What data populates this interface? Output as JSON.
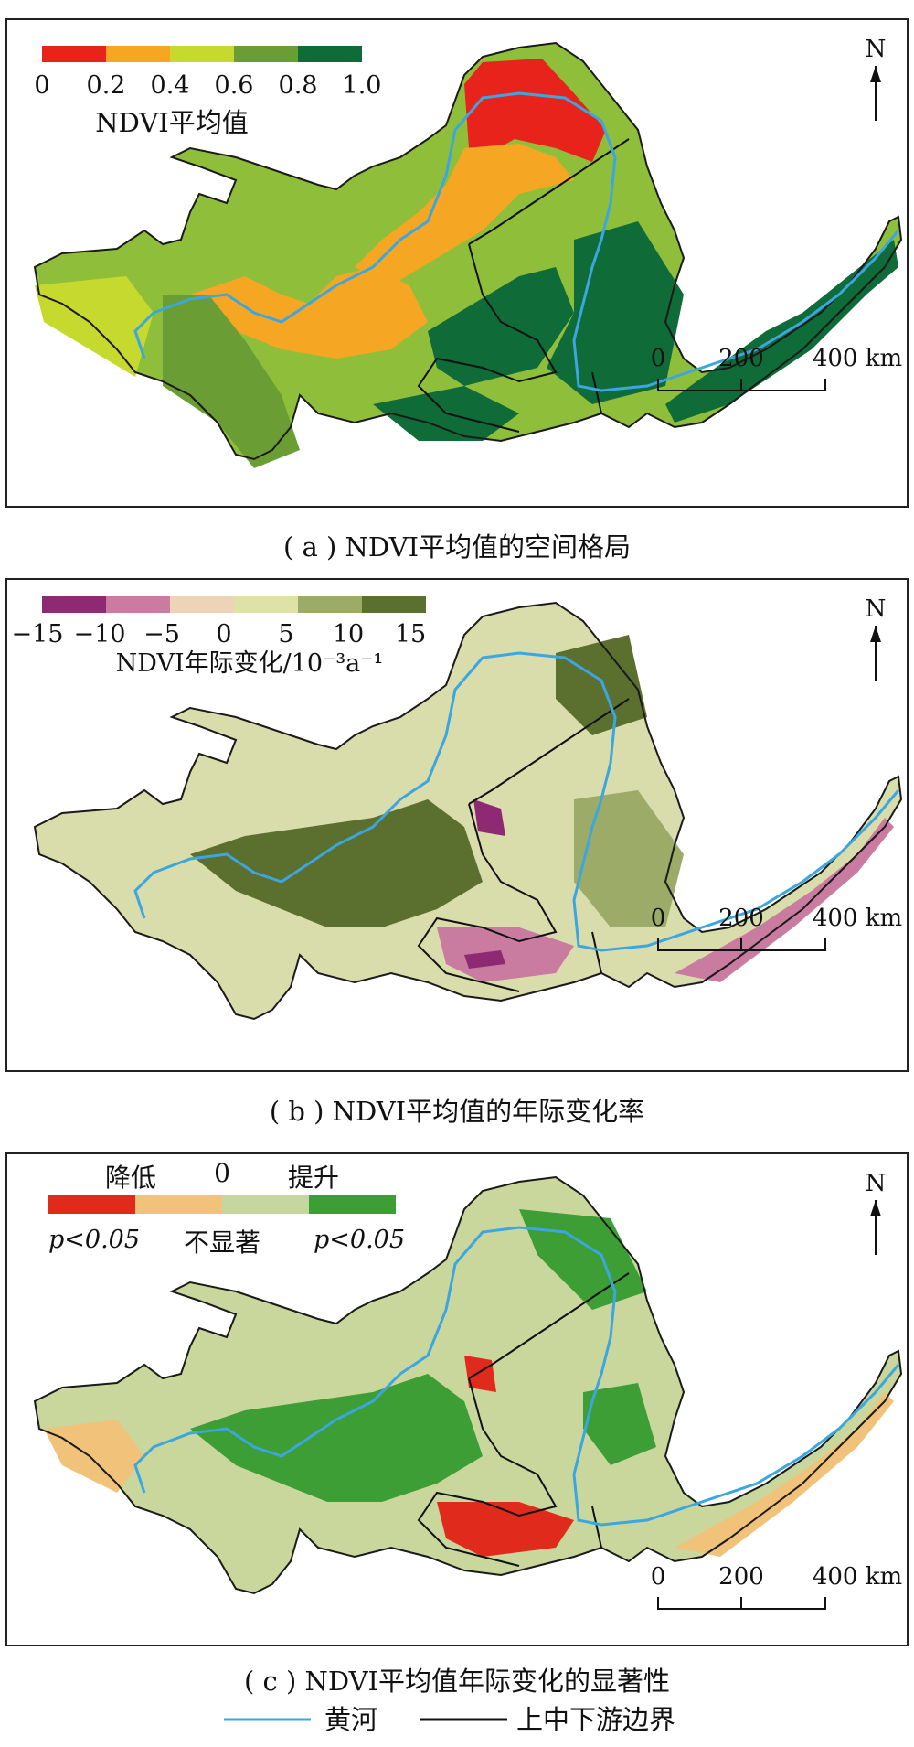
{
  "panels": [
    {
      "id": "a",
      "caption": "( a ) NDVI平均值的空间格局",
      "legend": {
        "title": "NDVI平均值",
        "ticks": [
          "0",
          "0.2",
          "0.4",
          "0.6",
          "0.8",
          "1.0"
        ],
        "colors": [
          "#e8231c",
          "#f5a623",
          "#c5d92e",
          "#6a9e34",
          "#0f6b38"
        ]
      },
      "map_base_color": "#8fbf3a",
      "north": "N",
      "scale_bar": [
        "0",
        "200",
        "400 km"
      ]
    },
    {
      "id": "b",
      "caption": "( b ) NDVI平均值的年际变化率",
      "legend": {
        "title": "NDVI年际变化/10⁻³a⁻¹",
        "ticks": [
          "−15",
          "−10",
          "−5",
          "0",
          "5",
          "10",
          "15"
        ],
        "colors": [
          "#8e2a74",
          "#c97ba0",
          "#edd4b6",
          "#dfe2a6",
          "#9cab68",
          "#5b6f2e"
        ]
      },
      "map_base_color": "#d9dcab",
      "north": "N",
      "scale_bar": [
        "0",
        "200",
        "400 km"
      ]
    },
    {
      "id": "c",
      "caption": "( c ) NDVI平均值年际变化的显著性",
      "legend": {
        "top_labels": [
          "降低",
          "0",
          "提升"
        ],
        "bottom_labels": [
          "p<0.05",
          "不显著",
          "p<0.05"
        ],
        "colors": [
          "#e02a1b",
          "#f1c27a",
          "#c5d6a0",
          "#3c9e34"
        ]
      },
      "map_base_color": "#c9d79c",
      "north": "N",
      "scale_bar": [
        "0",
        "200",
        "400 km"
      ]
    }
  ],
  "bottom_legend": {
    "river_label": "黄河",
    "river_color": "#3ba6e0",
    "boundary_label": "上中下游边界",
    "boundary_color": "#111111"
  }
}
